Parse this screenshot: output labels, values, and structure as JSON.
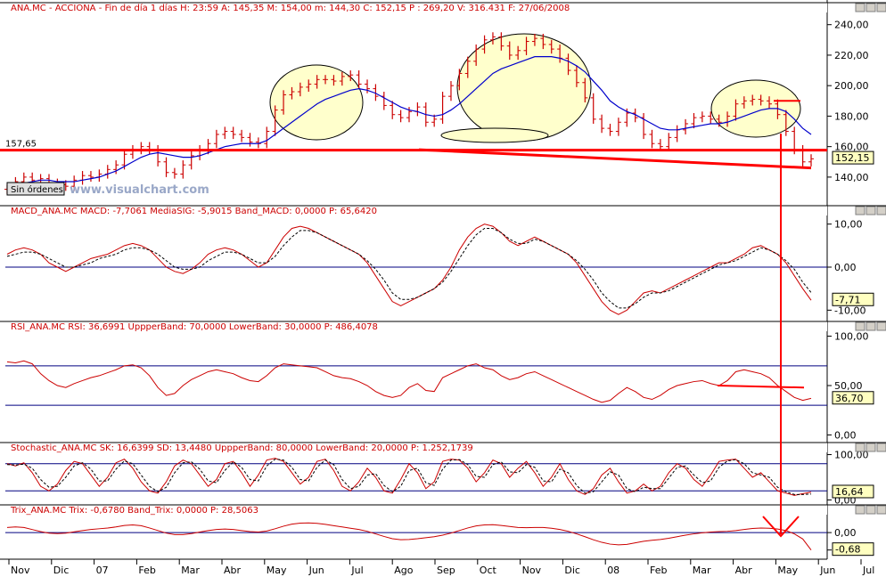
{
  "chart_data": {
    "type": "line",
    "colors": {
      "price": "#cc0000",
      "ma": "#0000cc",
      "band": "#000080",
      "annotation": "#ff0000",
      "highlight": "#ffffcc",
      "value_box": "#ffffc0"
    },
    "x_labels": [
      "Nov",
      "Dic",
      "07",
      "Feb",
      "Mar",
      "Abr",
      "May",
      "Jun",
      "Jul",
      "Ago",
      "Sep",
      "Oct",
      "Nov",
      "Dic",
      "08",
      "Feb",
      "Mar",
      "Abr",
      "May",
      "Jun",
      "Jul"
    ],
    "panels": [
      {
        "id": "price",
        "header": "ANA.MC - ACCIONA - Fin de día 1 días  H: 23:59  A: 145,35  M: 154,00  m: 144,30  C: 152,15  P : 269,20  V: 316.431  F: 27/06/2008",
        "y_ticks": [
          "240,00",
          "220,00",
          "200,00",
          "180,00",
          "160,00",
          "140,00"
        ],
        "y_range": [
          123,
          248
        ],
        "last_value": "152,15",
        "level_label": "157,65",
        "level": 157.65,
        "badge": "Sin órdenes",
        "watermark": "www.visualchart.com",
        "series": [
          {
            "name": "",
            "kind": "ohlc",
            "values": [
              132,
              137,
              140,
              138,
              139,
              136,
              135,
              134,
              138,
              141,
              140,
              142,
              145,
              148,
              155,
              158,
              160,
              158,
              150,
              143,
              142,
              148,
              154,
              158,
              162,
              168,
              170,
              168,
              166,
              163,
              162,
              170,
              184,
              194,
              196,
              199,
              201,
              204,
              204,
              203,
              206,
              207,
              201,
              198,
              193,
              187,
              181,
              179,
              183,
              186,
              176,
              178,
              193,
              200,
              208,
              216,
              224,
              230,
              232,
              226,
              220,
              223,
              229,
              231,
              227,
              224,
              218,
              210,
              202,
              192,
              178,
              172,
              170,
              176,
              182,
              179,
              168,
              162,
              160,
              166,
              171,
              175,
              179,
              180,
              178,
              176,
              180,
              188,
              190,
              191,
              190,
              188,
              181,
              170,
              158,
              150,
              152
            ]
          },
          {
            "name": "",
            "kind": "line",
            "values": [
              134,
              135,
              136,
              137,
              138,
              138,
              137,
              137,
              137,
              138,
              139,
              140,
              142,
              144,
              147,
              150,
              153,
              155,
              156,
              155,
              154,
              153,
              153,
              154,
              156,
              158,
              160,
              161,
              162,
              162,
              162,
              164,
              168,
              172,
              176,
              180,
              184,
              188,
              191,
              193,
              195,
              197,
              198,
              197,
              195,
              192,
              189,
              186,
              184,
              183,
              181,
              180,
              181,
              184,
              188,
              193,
              198,
              203,
              208,
              211,
              213,
              215,
              217,
              219,
              219,
              219,
              218,
              216,
              213,
              209,
              203,
              197,
              190,
              186,
              183,
              181,
              178,
              175,
              172,
              171,
              171,
              172,
              173,
              174,
              175,
              175,
              176,
              178,
              180,
              182,
              184,
              185,
              185,
              183,
              178,
              172,
              168
            ]
          }
        ]
      },
      {
        "id": "macd",
        "header": "MACD_ANA.MC  MACD: -7,7061  MediaSIG: -5,9015  Band_MACD: 0,0000  P: 65,6420",
        "y_ticks": [
          "10,00",
          "0,00",
          "-10,00"
        ],
        "y_range": [
          -12,
          12
        ],
        "band_levels": [
          0
        ],
        "last_value": "-7,71",
        "series": [
          {
            "name": "",
            "values": [
              3,
              4,
              4.5,
              4,
              3,
              1,
              0,
              -1,
              0,
              1,
              2,
              2.5,
              3,
              4,
              5,
              5.5,
              5,
              4,
              2,
              0,
              -1,
              -1.5,
              -0.5,
              1,
              3,
              4,
              4.5,
              4,
              3,
              1.5,
              0,
              1,
              4,
              7,
              9,
              9.5,
              9,
              8,
              7,
              6,
              5,
              4,
              3,
              1,
              -2,
              -5,
              -8,
              -9,
              -8,
              -7,
              -6,
              -5,
              -3,
              0,
              4,
              7,
              9,
              10,
              9.5,
              8,
              6,
              5,
              6,
              7,
              6,
              5,
              4,
              3,
              1,
              -2,
              -5,
              -8,
              -10,
              -11,
              -10,
              -8,
              -6,
              -5.5,
              -6,
              -5,
              -4,
              -3,
              -2,
              -1,
              0,
              1,
              1,
              2,
              3,
              4.5,
              5,
              4,
              3,
              1,
              -2,
              -5,
              -7.7
            ]
          },
          {
            "name": "",
            "dashed": true,
            "values": [
              2.5,
              3,
              3.5,
              3.5,
              3,
              2,
              1,
              0,
              0,
              0.5,
              1,
              2,
              2.5,
              3,
              4,
              4.5,
              4.5,
              4,
              3,
              1.5,
              0,
              -0.5,
              -0.5,
              0,
              1.5,
              2.5,
              3.5,
              3.5,
              3,
              2,
              1,
              1,
              2.5,
              5,
              7,
              8.5,
              8.5,
              8,
              7,
              6,
              5,
              4,
              3,
              1.5,
              -0.5,
              -3,
              -6,
              -7.5,
              -7.5,
              -7,
              -6,
              -5,
              -3.5,
              -1,
              2,
              5,
              7.5,
              9,
              9,
              8,
              6.5,
              5.5,
              5.5,
              6.5,
              6,
              5,
              4,
              3,
              1.5,
              -0.5,
              -3,
              -6,
              -8,
              -9.5,
              -9.5,
              -8.5,
              -7,
              -6,
              -6,
              -5.5,
              -4.5,
              -3.5,
              -2.5,
              -1.5,
              -0.5,
              0.5,
              1,
              1.5,
              2.5,
              3.5,
              4.5,
              4,
              3,
              1.5,
              -0.5,
              -3.5,
              -5.9
            ]
          }
        ]
      },
      {
        "id": "rsi",
        "header": "RSI_ANA.MC  RSI: 36,6991  UppperBand: 70,0000  LowerBand: 30,0000  P: 486,4078",
        "y_ticks": [
          "100,00",
          "50,00",
          "0,00"
        ],
        "y_range": [
          -5,
          105
        ],
        "band_levels": [
          70,
          30
        ],
        "last_value": "36,70",
        "series": [
          {
            "name": "",
            "values": [
              74,
              73,
              75,
              72,
              62,
              55,
              50,
              48,
              52,
              55,
              58,
              60,
              63,
              66,
              70,
              71,
              68,
              60,
              48,
              40,
              42,
              50,
              56,
              60,
              64,
              66,
              64,
              62,
              58,
              55,
              54,
              60,
              68,
              72,
              71,
              70,
              69,
              68,
              64,
              60,
              58,
              57,
              54,
              50,
              44,
              40,
              38,
              40,
              48,
              52,
              45,
              44,
              58,
              62,
              66,
              70,
              72,
              68,
              66,
              60,
              56,
              58,
              62,
              64,
              60,
              56,
              52,
              48,
              44,
              40,
              36,
              33,
              35,
              42,
              48,
              44,
              38,
              36,
              40,
              46,
              50,
              52,
              54,
              55,
              52,
              50,
              55,
              64,
              66,
              64,
              62,
              58,
              50,
              44,
              38,
              35,
              37
            ]
          }
        ]
      },
      {
        "id": "stochastic",
        "header": "Stochastic_ANA.MC  SK: 16,6399  SD: 13,4480  UppperBand: 80,0000  LowerBand: 20,0000  P: 1.252,1739",
        "y_ticks": [
          "100,00",
          "0,00"
        ],
        "y_range": [
          -5,
          105
        ],
        "band_levels": [
          80,
          20
        ],
        "last_value": "16,64",
        "series": [
          {
            "name": "",
            "values": [
              80,
              75,
              82,
              60,
              30,
              20,
              35,
              65,
              85,
              80,
              55,
              30,
              50,
              82,
              90,
              70,
              40,
              20,
              15,
              40,
              75,
              88,
              80,
              55,
              30,
              45,
              80,
              85,
              60,
              30,
              55,
              88,
              92,
              85,
              60,
              35,
              50,
              85,
              90,
              65,
              30,
              20,
              40,
              70,
              50,
              20,
              15,
              45,
              80,
              60,
              25,
              40,
              85,
              90,
              88,
              70,
              40,
              60,
              88,
              80,
              50,
              70,
              85,
              60,
              30,
              50,
              80,
              45,
              20,
              12,
              25,
              55,
              70,
              40,
              15,
              20,
              35,
              20,
              30,
              60,
              80,
              70,
              45,
              30,
              55,
              85,
              88,
              90,
              70,
              50,
              60,
              40,
              20,
              15,
              10,
              14,
              17
            ]
          },
          {
            "name": "",
            "dashed": true,
            "values": [
              78,
              77,
              79,
              70,
              45,
              28,
              30,
              50,
              75,
              82,
              68,
              42,
              42,
              68,
              86,
              80,
              55,
              30,
              18,
              28,
              60,
              82,
              84,
              68,
              42,
              38,
              65,
              84,
              72,
              45,
              42,
              75,
              90,
              88,
              72,
              45,
              42,
              72,
              88,
              78,
              45,
              25,
              30,
              55,
              58,
              32,
              18,
              30,
              65,
              70,
              38,
              32,
              68,
              88,
              89,
              78,
              52,
              50,
              78,
              84,
              62,
              60,
              78,
              72,
              42,
              40,
              68,
              60,
              32,
              15,
              18,
              40,
              62,
              55,
              25,
              18,
              28,
              25,
              25,
              48,
              72,
              75,
              55,
              38,
              42,
              72,
              86,
              89,
              80,
              60,
              55,
              50,
              28,
              18,
              12,
              12,
              13
            ]
          }
        ]
      },
      {
        "id": "trix",
        "header": "Trix_ANA.MC  Trix: -0,6780  Band_Trix: 0,0000  P: 28,5063",
        "y_ticks": [
          "0,00",
          "-0,68"
        ],
        "y_range": [
          -0.9,
          0.7
        ],
        "band_levels": [
          0
        ],
        "last_value": "-0,68",
        "series": [
          {
            "name": "",
            "values": [
              0.2,
              0.22,
              0.2,
              0.12,
              0.04,
              -0.02,
              -0.04,
              -0.02,
              0.03,
              0.08,
              0.12,
              0.15,
              0.18,
              0.22,
              0.28,
              0.3,
              0.27,
              0.18,
              0.08,
              -0.02,
              -0.08,
              -0.08,
              -0.04,
              0.02,
              0.08,
              0.12,
              0.14,
              0.12,
              0.08,
              0.04,
              0.02,
              0.06,
              0.15,
              0.25,
              0.33,
              0.37,
              0.38,
              0.36,
              0.32,
              0.27,
              0.22,
              0.17,
              0.12,
              0.05,
              -0.05,
              -0.15,
              -0.24,
              -0.28,
              -0.27,
              -0.24,
              -0.2,
              -0.16,
              -0.1,
              -0.02,
              0.08,
              0.18,
              0.26,
              0.3,
              0.31,
              0.28,
              0.24,
              0.2,
              0.19,
              0.2,
              0.2,
              0.17,
              0.12,
              0.05,
              -0.05,
              -0.16,
              -0.28,
              -0.38,
              -0.45,
              -0.48,
              -0.46,
              -0.4,
              -0.34,
              -0.3,
              -0.27,
              -0.22,
              -0.16,
              -0.1,
              -0.05,
              -0.01,
              0.02,
              0.04,
              0.05,
              0.08,
              0.12,
              0.16,
              0.18,
              0.17,
              0.14,
              0.08,
              -0.05,
              -0.25,
              -0.68
            ]
          }
        ]
      }
    ]
  }
}
